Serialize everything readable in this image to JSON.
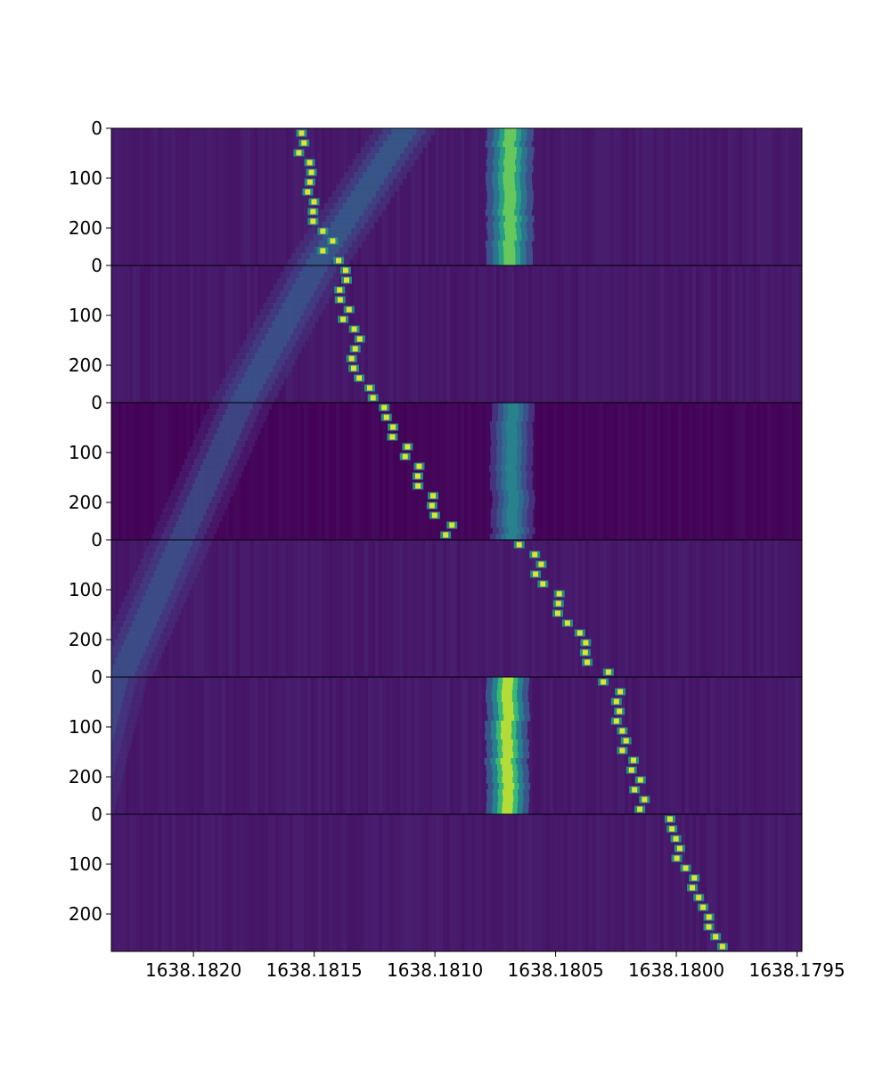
{
  "chart_data": {
    "type": "heatmap",
    "colormap": "viridis",
    "xlim": [
      1638.18234,
      1638.17948
    ],
    "x_ticks": [
      {
        "value": 1638.182,
        "label": "1638.1820"
      },
      {
        "value": 1638.1815,
        "label": "1638.1815"
      },
      {
        "value": 1638.181,
        "label": "1638.1810"
      },
      {
        "value": 1638.1805,
        "label": "1638.1805"
      },
      {
        "value": 1638.18,
        "label": "1638.1800"
      },
      {
        "value": 1638.1795,
        "label": "1638.1795"
      }
    ],
    "xlabel": "",
    "ylabel": "",
    "panels": [
      {
        "ylim": [
          0,
          275
        ],
        "y_ticks": [
          {
            "value": 0,
            "label": "0"
          },
          {
            "value": 100,
            "label": "100"
          },
          {
            "value": 200,
            "label": "200"
          }
        ],
        "fixed_band": {
          "center": 1638.18069,
          "width": 0.00012,
          "intensity": 0.82
        },
        "drifting_band": {
          "x_start": 1638.18112,
          "x_end": 1638.18149,
          "intensity": 0.42
        },
        "dot_track": {
          "x_start": 1638.18158,
          "x_end": 1638.18142
        }
      },
      {
        "ylim": [
          0,
          275
        ],
        "y_ticks": [
          {
            "value": 0,
            "label": "0"
          },
          {
            "value": 100,
            "label": "100"
          },
          {
            "value": 200,
            "label": "200"
          }
        ],
        "fixed_band": null,
        "drifting_band": {
          "x_start": 1638.18149,
          "x_end": 1638.1818,
          "intensity": 0.38
        },
        "dot_track": {
          "x_start": 1638.1814,
          "x_end": 1638.18128
        }
      },
      {
        "ylim": [
          0,
          275
        ],
        "y_ticks": [
          {
            "value": 0,
            "label": "0"
          },
          {
            "value": 100,
            "label": "100"
          },
          {
            "value": 200,
            "label": "200"
          }
        ],
        "fixed_band": {
          "center": 1638.18068,
          "width": 0.00011,
          "intensity": 0.55
        },
        "drifting_band": {
          "x_start": 1638.1818,
          "x_end": 1638.18205,
          "intensity": 0.34
        },
        "dot_track": {
          "x_start": 1638.18122,
          "x_end": 1638.18092
        }
      },
      {
        "ylim": [
          0,
          275
        ],
        "y_ticks": [
          {
            "value": 0,
            "label": "0"
          },
          {
            "value": 100,
            "label": "100"
          },
          {
            "value": 200,
            "label": "200"
          }
        ],
        "fixed_band": null,
        "drifting_band": {
          "x_start": 1638.18205,
          "x_end": 1638.1823,
          "intensity": 0.36
        },
        "dot_track": {
          "x_start": 1638.18065,
          "x_end": 1638.1803
        }
      },
      {
        "ylim": [
          0,
          275
        ],
        "y_ticks": [
          {
            "value": 0,
            "label": "0"
          },
          {
            "value": 100,
            "label": "100"
          },
          {
            "value": 200,
            "label": "200"
          }
        ],
        "fixed_band": {
          "center": 1638.1807,
          "width": 0.00011,
          "intensity": 0.92
        },
        "drifting_band": {
          "x_start": 1638.18232,
          "x_end": 1638.18246,
          "intensity": 0.32
        },
        "dot_track": {
          "x_start": 1638.18028,
          "x_end": 1638.18012
        }
      },
      {
        "ylim": [
          0,
          275
        ],
        "y_ticks": [
          {
            "value": 0,
            "label": "0"
          },
          {
            "value": 100,
            "label": "100"
          },
          {
            "value": 200,
            "label": "200"
          }
        ],
        "fixed_band": null,
        "drifting_band": null,
        "dot_track": {
          "x_start": 1638.18005,
          "x_end": 1638.17982
        }
      }
    ]
  }
}
